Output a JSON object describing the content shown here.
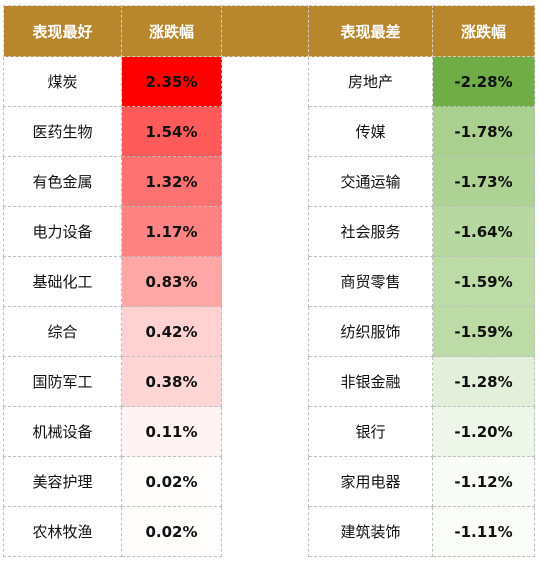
{
  "headers": {
    "best_sector": "表现最好",
    "best_change": "涨跌幅",
    "worst_sector": "表现最差",
    "worst_change": "涨跌幅"
  },
  "rows": [
    {
      "best": "煤炭",
      "best_pct": "2.35%",
      "best_color": "#ff0000",
      "worst": "房地产",
      "worst_pct": "-2.28%",
      "worst_color": "#70ad47"
    },
    {
      "best": "医药生物",
      "best_pct": "1.54%",
      "best_color": "#ff5b5b",
      "worst": "传媒",
      "worst_pct": "-1.78%",
      "worst_color": "#a9d08e"
    },
    {
      "best": "有色金属",
      "best_pct": "1.32%",
      "best_color": "#ff7272",
      "worst": "交通运输",
      "worst_pct": "-1.73%",
      "worst_color": "#add293"
    },
    {
      "best": "电力设备",
      "best_pct": "1.17%",
      "best_color": "#ff8383",
      "worst": "社会服务",
      "worst_pct": "-1.64%",
      "worst_color": "#b7d8a0"
    },
    {
      "best": "基础化工",
      "best_pct": "0.83%",
      "best_color": "#ffa6a6",
      "worst": "商贸零售",
      "worst_pct": "-1.59%",
      "worst_color": "#bddba7"
    },
    {
      "best": "综合",
      "best_pct": "0.42%",
      "best_color": "#ffd1d1",
      "worst": "纺织服饰",
      "worst_pct": "-1.59%",
      "worst_color": "#bddba7"
    },
    {
      "best": "国防军工",
      "best_pct": "0.38%",
      "best_color": "#ffd6d6",
      "worst": "非银金融",
      "worst_pct": "-1.28%",
      "worst_color": "#e4efdb"
    },
    {
      "best": "机械设备",
      "best_pct": "0.11%",
      "best_color": "#fff3f3",
      "worst": "银行",
      "worst_pct": "-1.20%",
      "worst_color": "#eef5e9"
    },
    {
      "best": "美容护理",
      "best_pct": "0.02%",
      "best_color": "#fffcfc",
      "worst": "家用电器",
      "worst_pct": "-1.12%",
      "worst_color": "#f8fbf6"
    },
    {
      "best": "农林牧渔",
      "best_pct": "0.02%",
      "best_color": "#fffcfc",
      "worst": "建筑装饰",
      "worst_pct": "-1.11%",
      "worst_color": "#fafcf8"
    }
  ],
  "colors": {
    "header_bg": "#b8862c",
    "header_text": "#ffffff"
  }
}
